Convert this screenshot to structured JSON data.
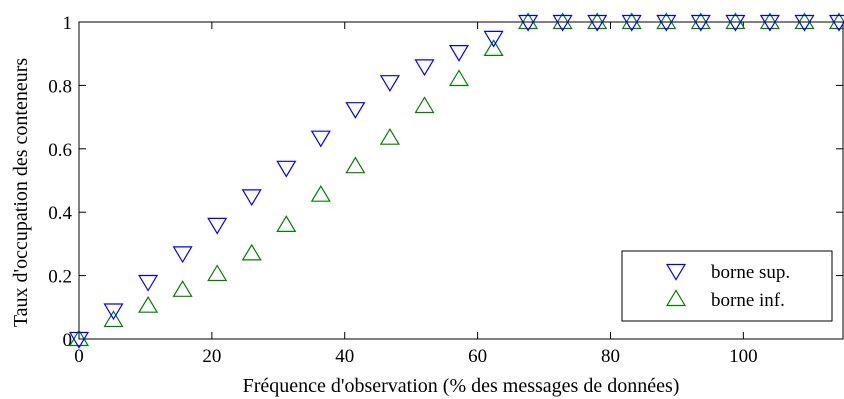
{
  "chart_data": {
    "type": "scatter",
    "title": "",
    "xlabel": "Fréquence d'observation (% des messages de données)",
    "ylabel": "Taux d'occupation des conteneurs",
    "xlim": [
      0,
      115
    ],
    "ylim": [
      0,
      1
    ],
    "xticks": [
      0,
      20,
      40,
      60,
      80,
      100
    ],
    "yticks": [
      0,
      0.2,
      0.4,
      0.6,
      0.8,
      1
    ],
    "xtick_labels": [
      "0",
      "20",
      "40",
      "60",
      "80",
      "100"
    ],
    "ytick_labels": [
      "0",
      "0.2",
      "0.4",
      "0.6",
      "0.8",
      "1"
    ],
    "grid": false,
    "legend_position": "bottom-right",
    "series": [
      {
        "name": "borne sup.",
        "marker": "triangle-down",
        "color": "#0000ff",
        "x": [
          0,
          5.2,
          10.4,
          15.6,
          20.8,
          26,
          31.2,
          36.4,
          41.6,
          46.8,
          52,
          57.2,
          62.4,
          67.6,
          72.8,
          78,
          83.2,
          88.4,
          93.6,
          98.8,
          104,
          109.2,
          114.4
        ],
        "y": [
          0,
          0.09,
          0.18,
          0.27,
          0.36,
          0.45,
          0.54,
          0.635,
          0.725,
          0.81,
          0.86,
          0.905,
          0.95,
          1,
          1,
          1,
          1,
          1,
          1,
          1,
          1,
          1,
          1
        ]
      },
      {
        "name": "borne inf.",
        "marker": "triangle-up",
        "color": "#008000",
        "x": [
          0,
          5.2,
          10.4,
          15.6,
          20.8,
          26,
          31.2,
          36.4,
          41.6,
          46.8,
          52,
          57.2,
          62.4,
          67.6,
          72.8,
          78,
          83.2,
          88.4,
          93.6,
          98.8,
          104,
          109.2,
          114.4
        ],
        "y": [
          0,
          0.06,
          0.105,
          0.155,
          0.205,
          0.27,
          0.36,
          0.455,
          0.545,
          0.635,
          0.735,
          0.82,
          0.915,
          1,
          1,
          1,
          1,
          1,
          1,
          1,
          1,
          1,
          1
        ]
      }
    ]
  }
}
